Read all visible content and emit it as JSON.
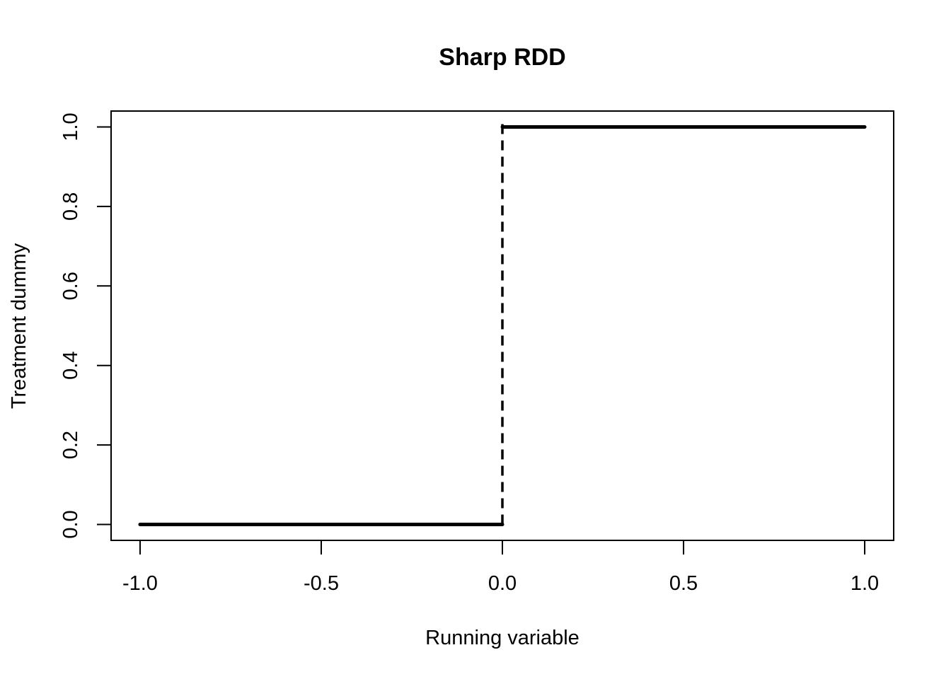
{
  "chart_data": {
    "type": "line",
    "title": "Sharp RDD",
    "xlabel": "Running variable",
    "ylabel": "Treatment dummy",
    "xlim": [
      -1.08,
      1.08
    ],
    "ylim": [
      -0.04,
      1.04
    ],
    "x_ticks": [
      -1.0,
      -0.5,
      0.0,
      0.5,
      1.0
    ],
    "x_tick_labels": [
      "-1.0",
      "-0.5",
      "0.0",
      "0.5",
      "1.0"
    ],
    "y_ticks": [
      0.0,
      0.2,
      0.4,
      0.6,
      0.8,
      1.0
    ],
    "y_tick_labels": [
      "0.0",
      "0.2",
      "0.4",
      "0.6",
      "0.8",
      "1.0"
    ],
    "grid": false,
    "series": [
      {
        "x": [
          -1.0,
          0.0
        ],
        "values": [
          0,
          0
        ],
        "style": "solid"
      },
      {
        "x": [
          0.0,
          1.0
        ],
        "values": [
          1,
          1
        ],
        "style": "solid"
      }
    ],
    "cutoff": {
      "x": 0.0,
      "y_range": [
        0,
        1.02
      ],
      "style": "dashed"
    }
  }
}
